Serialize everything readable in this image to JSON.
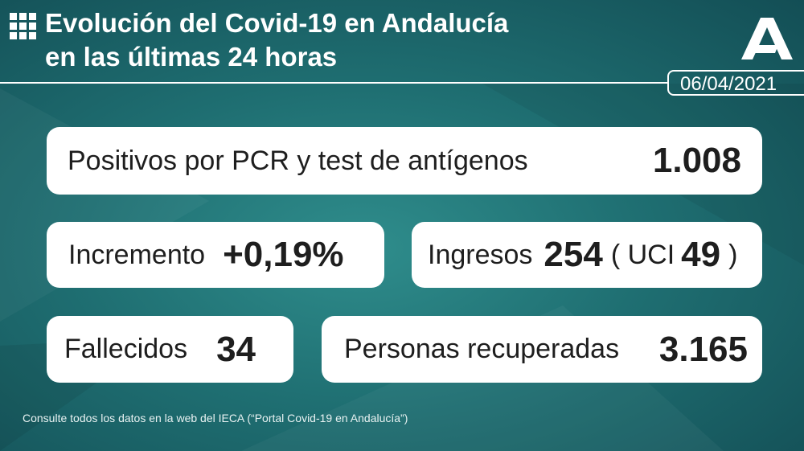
{
  "header": {
    "title_line1": "Evolución del Covid-19 en Andalucía",
    "title_line2": "en las últimas 24 horas",
    "date": "06/04/2021"
  },
  "cards": {
    "positivos": {
      "label": "Positivos por PCR y test de antígenos",
      "value": "1.008"
    },
    "incremento": {
      "label": "Incremento",
      "value": "+0,19%"
    },
    "ingresos": {
      "label": "Ingresos",
      "value": "254",
      "uci_label": "( UCI",
      "uci_value": "49",
      "close": ")"
    },
    "fallecidos": {
      "label": "Fallecidos",
      "value": "34"
    },
    "recuperadas": {
      "label": "Personas recuperadas",
      "value": "3.165"
    }
  },
  "footer": "Consulte todos los datos en la web del IECA (“Portal Covid-19 en Andalucía”)"
}
